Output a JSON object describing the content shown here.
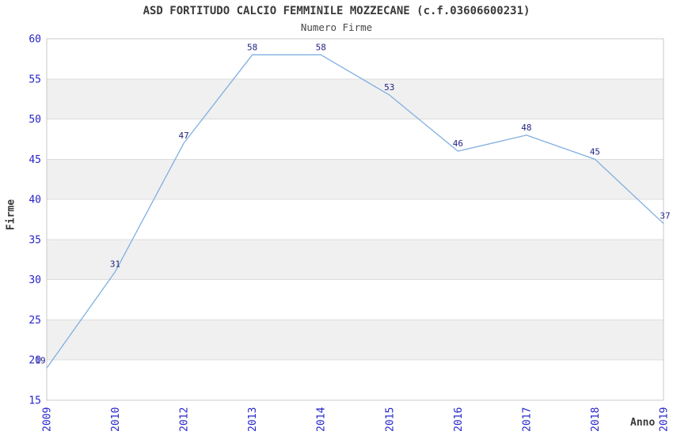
{
  "header": {
    "title": "ASD FORTITUDO CALCIO FEMMINILE MOZZECANE (c.f.03606600231)",
    "subtitle": "Numero Firme"
  },
  "axes": {
    "y_label": "Firme",
    "x_label": "Anno"
  },
  "colors": {
    "tick_label": "#2525cb",
    "data_label": "#232384",
    "line": "#7fafe0",
    "band": "#f0f0f0",
    "gridline": "#dcdcdc",
    "plot_border": "#c8c8c8",
    "text": "#3a3a3a"
  },
  "chart_data": {
    "type": "line",
    "title": "ASD FORTITUDO CALCIO FEMMINILE MOZZECANE (c.f.03606600231)",
    "subtitle": "Numero Firme",
    "xlabel": "Anno",
    "ylabel": "Firme",
    "categories": [
      "2009",
      "2010",
      "2012",
      "2013",
      "2014",
      "2015",
      "2016",
      "2017",
      "2018",
      "2019"
    ],
    "values": [
      19,
      31,
      47,
      58,
      58,
      53,
      46,
      48,
      45,
      37
    ],
    "ylim": [
      15,
      60
    ],
    "ytick_step": 5,
    "grid": true,
    "band_ranges": [
      [
        20,
        25
      ],
      [
        30,
        35
      ],
      [
        40,
        45
      ],
      [
        50,
        55
      ]
    ],
    "legend": "none",
    "point_labels_shown": true
  }
}
